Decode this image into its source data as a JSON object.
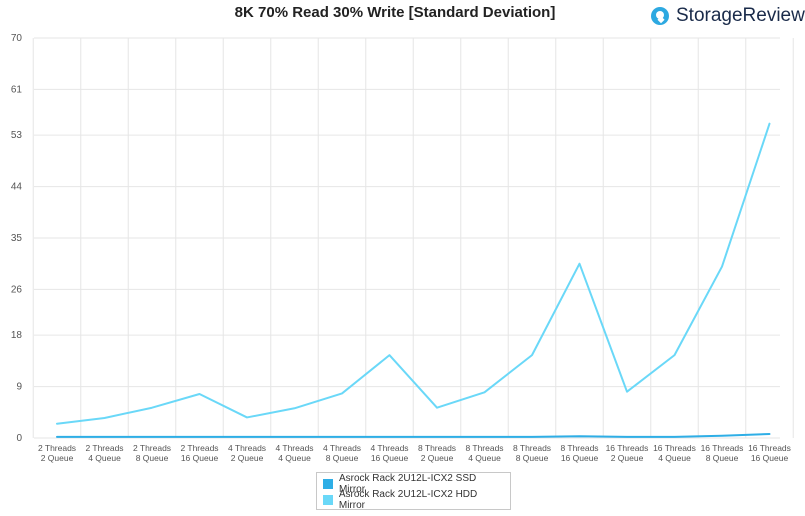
{
  "header": {
    "title": "8K 70% Read 30% Write [Standard Deviation]",
    "brand": "StorageReview",
    "brand_icon": "storagereview-logo-icon"
  },
  "colors": {
    "ssd": "#2eaee6",
    "hdd": "#6ad8f8",
    "grid": "#e6e6e6",
    "brand_icon": "#2da9e1"
  },
  "chart_data": {
    "type": "line",
    "title": "8K 70% Read 30% Write [Standard Deviation]",
    "categories": [
      [
        "2 Threads",
        "2 Queue"
      ],
      [
        "2 Threads",
        "4 Queue"
      ],
      [
        "2 Threads",
        "8 Queue"
      ],
      [
        "2 Threads",
        "16 Queue"
      ],
      [
        "4 Threads",
        "2 Queue"
      ],
      [
        "4 Threads",
        "4 Queue"
      ],
      [
        "4 Threads",
        "8 Queue"
      ],
      [
        "4 Threads",
        "16 Queue"
      ],
      [
        "8 Threads",
        "2 Queue"
      ],
      [
        "8 Threads",
        "4 Queue"
      ],
      [
        "8 Threads",
        "8 Queue"
      ],
      [
        "8 Threads",
        "16 Queue"
      ],
      [
        "16 Threads",
        "2 Queue"
      ],
      [
        "16 Threads",
        "4 Queue"
      ],
      [
        "16 Threads",
        "8 Queue"
      ],
      [
        "16 Threads",
        "16 Queue"
      ]
    ],
    "yticks": [
      0,
      9,
      18,
      26,
      35,
      44,
      53,
      61,
      70
    ],
    "ylim": [
      0,
      70
    ],
    "grid": true,
    "legend_position": "bottom",
    "series": [
      {
        "name": "Asrock Rack 2U12L-ICX2 SSD Mirror",
        "color": "#2eaee6",
        "values": [
          0.2,
          0.2,
          0.2,
          0.2,
          0.2,
          0.2,
          0.2,
          0.2,
          0.2,
          0.2,
          0.2,
          0.3,
          0.2,
          0.2,
          0.4,
          0.7
        ]
      },
      {
        "name": "Asrock Rack 2U12L-ICX2 HDD Mirror",
        "color": "#6ad8f8",
        "values": [
          2.5,
          3.5,
          5.3,
          7.7,
          3.6,
          5.2,
          7.8,
          14.5,
          5.3,
          8.0,
          14.5,
          30.5,
          8.1,
          14.5,
          30.0,
          55.0
        ]
      }
    ]
  },
  "legend": {
    "items": [
      {
        "label": "Asrock Rack 2U12L-ICX2 SSD Mirror",
        "color": "#2eaee6"
      },
      {
        "label": "Asrock Rack 2U12L-ICX2 HDD Mirror",
        "color": "#6ad8f8"
      }
    ]
  }
}
